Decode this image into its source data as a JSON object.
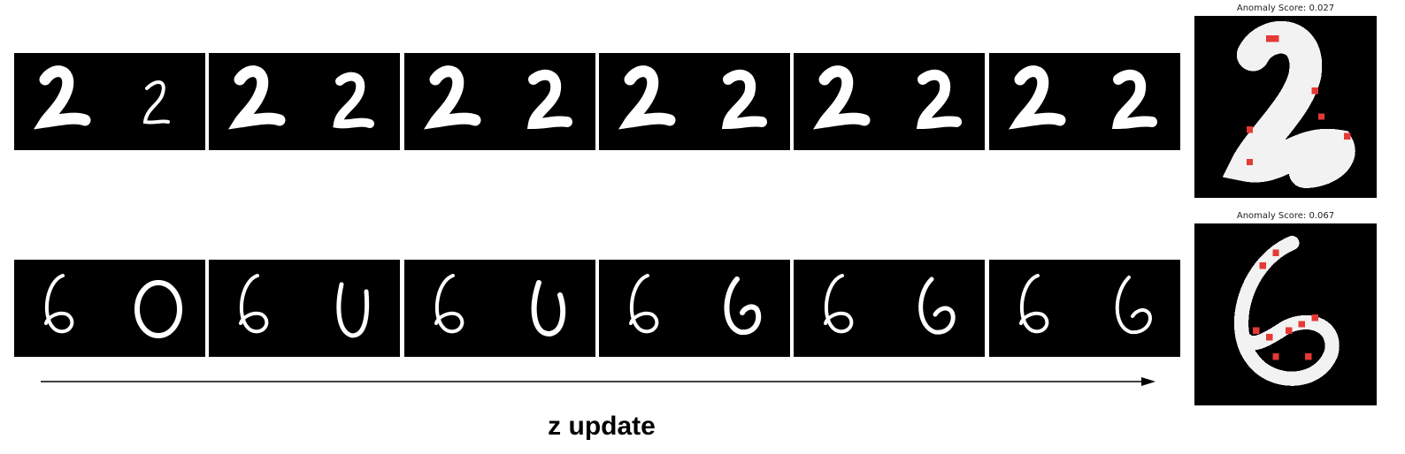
{
  "rows": [
    {
      "label": "row-digit-2",
      "score_label": "Anomaly Score: 0.027",
      "query_digit": "2",
      "frames": [
        "step-1",
        "step-2",
        "step-3",
        "step-4",
        "step-5",
        "step-6"
      ]
    },
    {
      "label": "row-digit-6",
      "score_label": "Anomaly Score: 0.067",
      "query_digit": "6",
      "frames": [
        "step-1",
        "step-2",
        "step-3",
        "step-4",
        "step-5",
        "step-6"
      ]
    }
  ],
  "caption": "z update",
  "colors": {
    "background": "#000000",
    "stroke": "#ffffff",
    "anomaly": "#e53935"
  }
}
